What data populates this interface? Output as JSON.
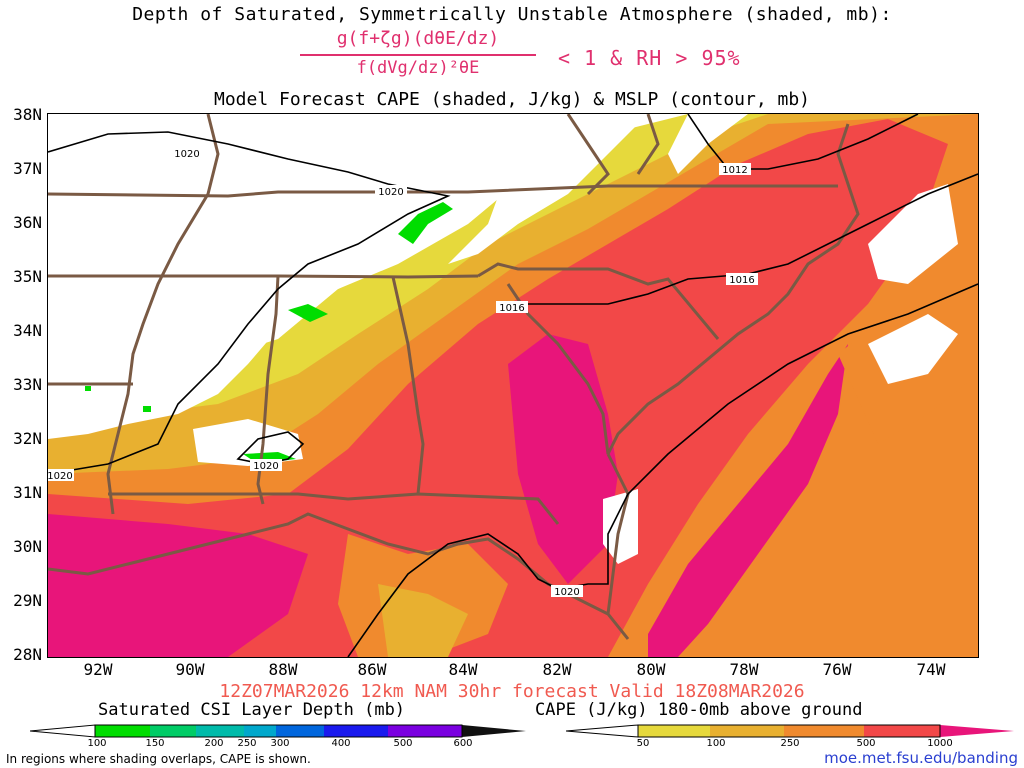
{
  "title_line1": "Depth of Saturated, Symmetrically Unstable Atmosphere (shaded, mb):",
  "formula": {
    "numerator": "g(f+ζg)(dθE/dz)",
    "denominator": "f(dVg/dz)²θE",
    "condition": "< 1 & RH > 95%"
  },
  "title_line3": "Model Forecast CAPE (shaded, J/kg) & MSLP (contour, mb)",
  "lat_labels": [
    "38N",
    "37N",
    "36N",
    "35N",
    "34N",
    "33N",
    "32N",
    "31N",
    "30N",
    "29N",
    "28N"
  ],
  "lon_labels": [
    "92W",
    "90W",
    "88W",
    "86W",
    "84W",
    "82W",
    "80W",
    "78W",
    "76W",
    "74W"
  ],
  "isobar_labels": [
    "1020",
    "1020",
    "1020",
    "1020",
    "1012",
    "1016",
    "1016",
    "1020"
  ],
  "valid_text": "12Z07MAR2026 12km NAM 30hr forecast Valid 18Z08MAR2026",
  "legend_csi": {
    "label": "Saturated CSI Layer Depth (mb)",
    "ticks": [
      "100",
      "150",
      "200",
      "250",
      "300",
      "400",
      "500",
      "600"
    ],
    "colors": [
      "#00dd00",
      "#00cc66",
      "#00bbaa",
      "#00a8cc",
      "#0066dd",
      "#1a1aee",
      "#7a00e0",
      "#111111"
    ]
  },
  "legend_cape": {
    "label": "CAPE (J/kg) 180-0mb above ground",
    "ticks": [
      "50",
      "100",
      "250",
      "500",
      "1000"
    ],
    "colors": [
      "#e6d93c",
      "#e8b030",
      "#f08a2e",
      "#f24848",
      "#e8157a"
    ]
  },
  "footnote": "In regions where shading overlaps, CAPE is shown.",
  "url": "moe.met.fsu.edu/banding"
}
